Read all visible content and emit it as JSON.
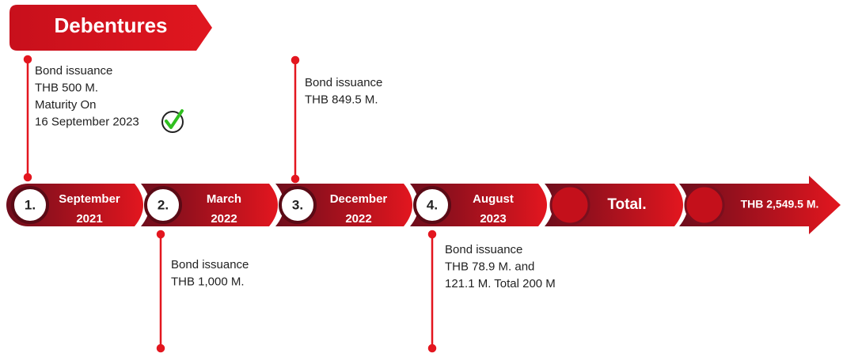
{
  "header": {
    "title": "Debentures"
  },
  "timeline": {
    "items": [
      {
        "number": "1.",
        "month": "September",
        "year": "2021",
        "note": [
          "Bond issuance",
          "THB 500 M.",
          "Maturity On",
          "16 September 2023"
        ]
      },
      {
        "number": "2.",
        "month": "March",
        "year": "2022",
        "note": [
          "Bond issuance",
          "THB 1,000 M."
        ]
      },
      {
        "number": "3.",
        "month": "December",
        "year": "2022",
        "note": [
          "Bond issuance",
          "THB 849.5 M."
        ]
      },
      {
        "number": "4.",
        "month": "August",
        "year": "2023",
        "note": [
          "Bond issuance",
          "THB 78.9 M. and",
          "121.1 M. Total 200 M"
        ]
      }
    ]
  },
  "total": {
    "label": "Total.",
    "value": "THB 2,549.5 M."
  }
}
